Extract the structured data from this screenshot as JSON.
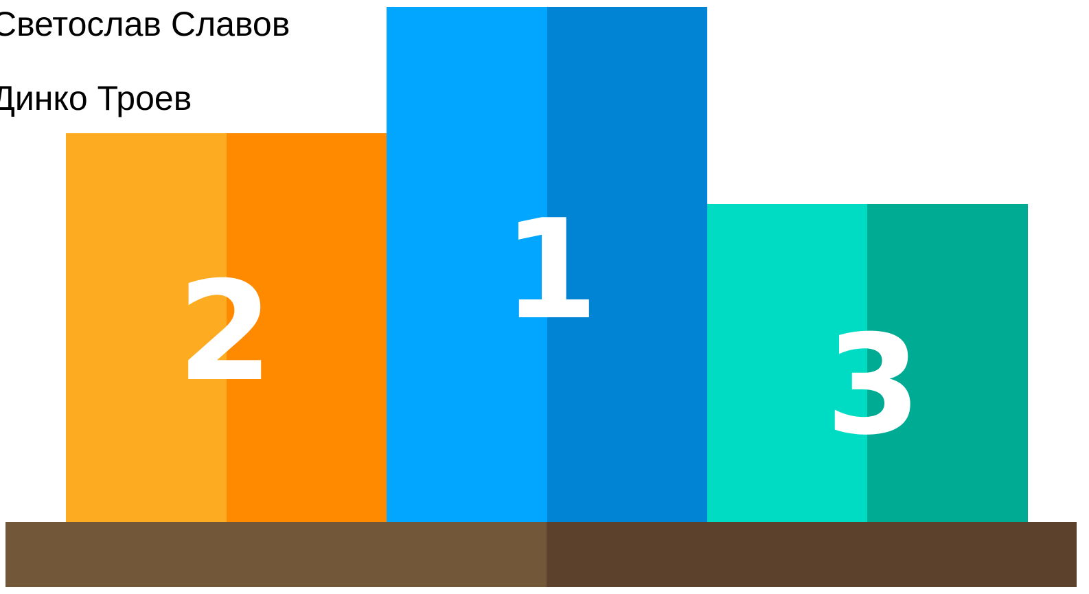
{
  "names": [
    "Светослав Славов",
    "Динко Троев"
  ],
  "podium": [
    {
      "place": "2"
    },
    {
      "place": "1"
    },
    {
      "place": "3"
    }
  ]
}
